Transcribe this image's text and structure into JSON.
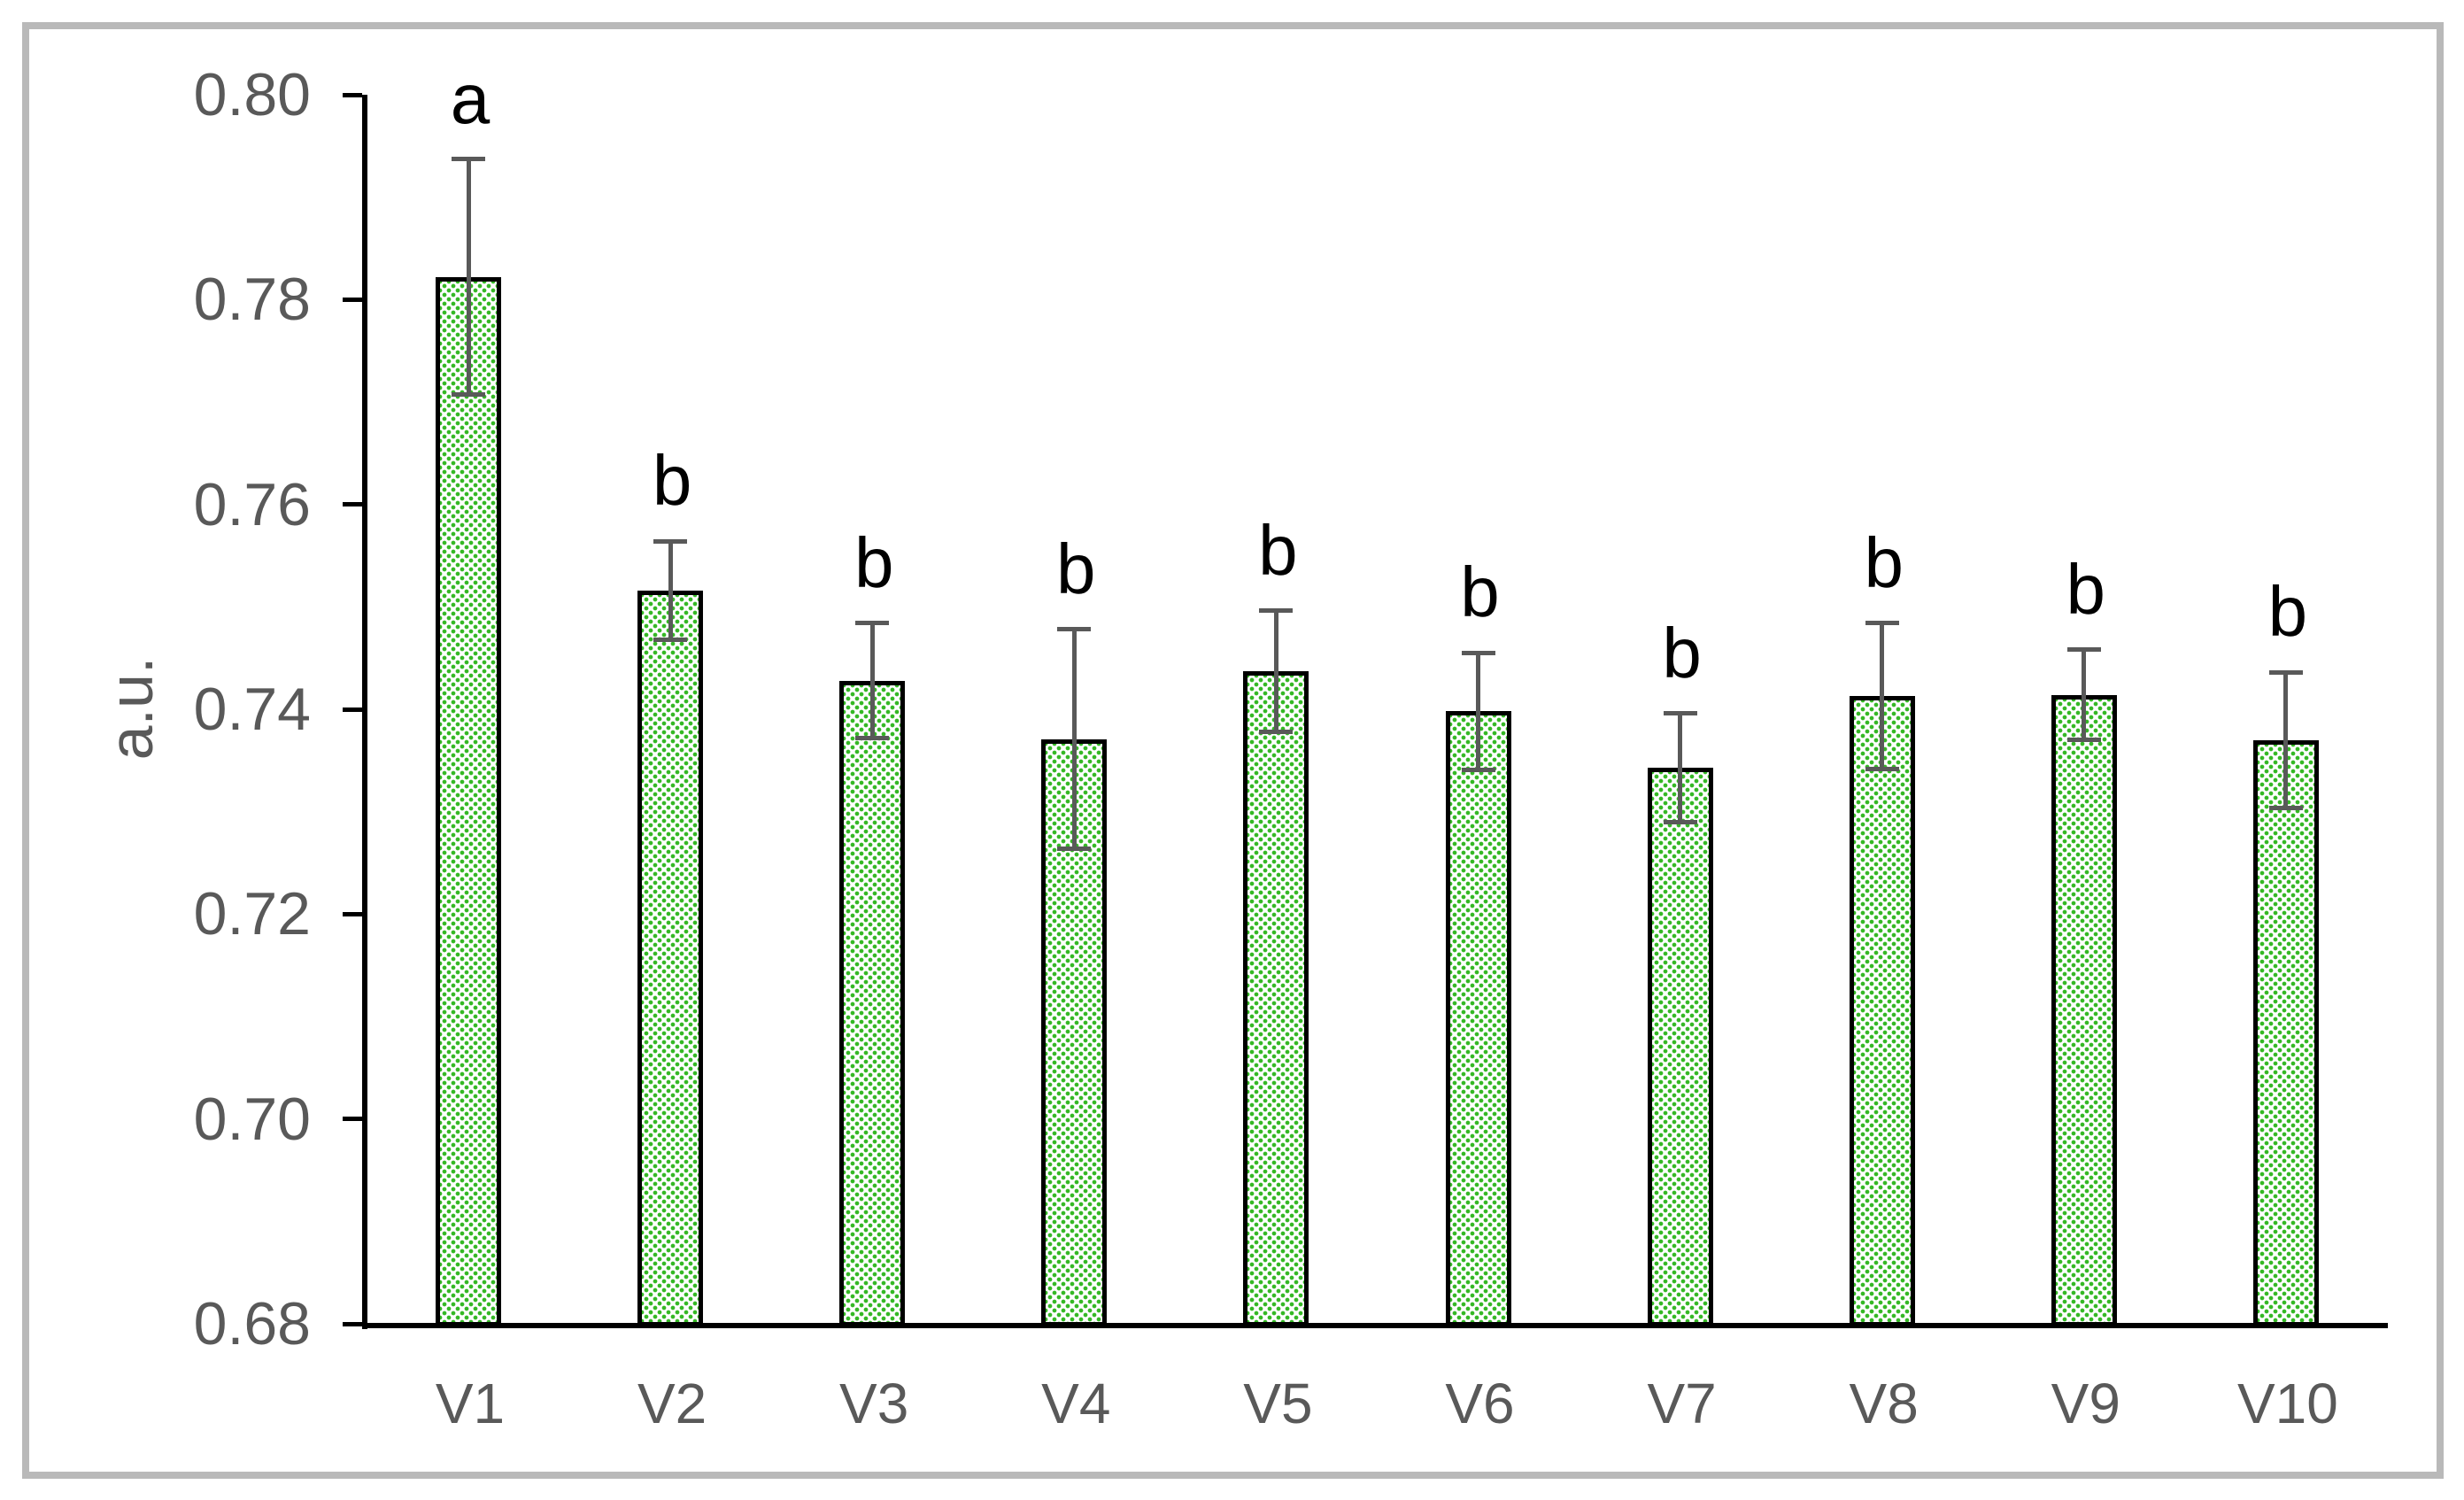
{
  "chart_data": {
    "type": "bar",
    "title": "",
    "xlabel": "",
    "ylabel": "a.u.",
    "categories": [
      "V1",
      "V2",
      "V3",
      "V4",
      "V5",
      "V6",
      "V7",
      "V8",
      "V9",
      "V10"
    ],
    "values": [
      0.7822,
      0.7516,
      0.7428,
      0.7371,
      0.7437,
      0.7398,
      0.7343,
      0.7413,
      0.7414,
      0.737
    ],
    "errors": [
      0.0115,
      0.0048,
      0.0056,
      0.0107,
      0.0059,
      0.0057,
      0.0053,
      0.0071,
      0.0044,
      0.0066
    ],
    "significance_letters": [
      "a",
      "b",
      "b",
      "b",
      "b",
      "b",
      "b",
      "b",
      "b",
      "b"
    ],
    "ylim": [
      0.68,
      0.8
    ],
    "ytick_labels": [
      "0.80",
      "0.78",
      "0.76",
      "0.74",
      "0.72",
      "0.70",
      "0.68"
    ],
    "ytick_values": [
      0.8,
      0.78,
      0.76,
      0.74,
      0.72,
      0.7,
      0.68
    ],
    "grid": "off",
    "legend": "none",
    "colors": {
      "bar_dot_fill": "#35b825",
      "bar_background": "#ffffff",
      "bar_border": "#000000",
      "error_bar": "#595959",
      "axis": "#000000",
      "tick_text": "#595959",
      "letter_text": "#000000",
      "figure_border": "#b9b9b9"
    }
  }
}
